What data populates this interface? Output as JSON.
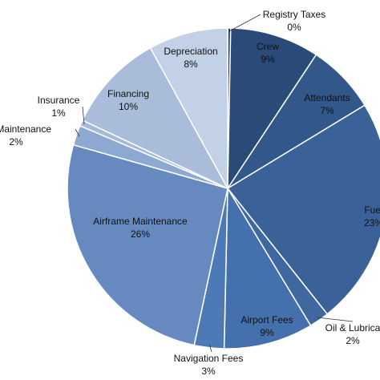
{
  "chart_data": {
    "type": "pie",
    "title": "",
    "slices": [
      {
        "label": "Registry Taxes",
        "value": 0.3,
        "display": "0%",
        "color": "#1f3a66",
        "name": "registry-taxes"
      },
      {
        "label": "Crew",
        "value": 9,
        "display": "9%",
        "color": "#2a4a78",
        "name": "crew"
      },
      {
        "label": "Attendants",
        "value": 7,
        "display": "7%",
        "color": "#32578a",
        "name": "attendants"
      },
      {
        "label": "Fuel",
        "value": 23,
        "display": "23%",
        "color": "#3b6298",
        "name": "fuel"
      },
      {
        "label": "Oil & Lubrica",
        "value": 2,
        "display": "2%",
        "color": "#3f68a1",
        "name": "oil-lubricants"
      },
      {
        "label": "Airport Fees",
        "value": 9,
        "display": "9%",
        "color": "#4470ad",
        "name": "airport-fees"
      },
      {
        "label": "Navigation Fees",
        "value": 3,
        "display": "3%",
        "color": "#4d7ab7",
        "name": "navigation-fees"
      },
      {
        "label": "Airframe Maintenance",
        "value": 26,
        "display": "26%",
        "color": "#6689c0",
        "name": "airframe-maintenance"
      },
      {
        "label": "ine Maintenance",
        "value": 2,
        "display": "2%",
        "color": "#8da8d1",
        "name": "engine-maintenance"
      },
      {
        "label": "Insurance",
        "value": 0.6,
        "display": "1%",
        "color": "#a5bad9",
        "name": "insurance"
      },
      {
        "label": "Financing",
        "value": 10,
        "display": "10%",
        "color": "#a9bcda",
        "name": "financing"
      },
      {
        "label": "Depreciation",
        "value": 8,
        "display": "8%",
        "color": "#c3d1e7",
        "name": "depreciation"
      }
    ]
  }
}
